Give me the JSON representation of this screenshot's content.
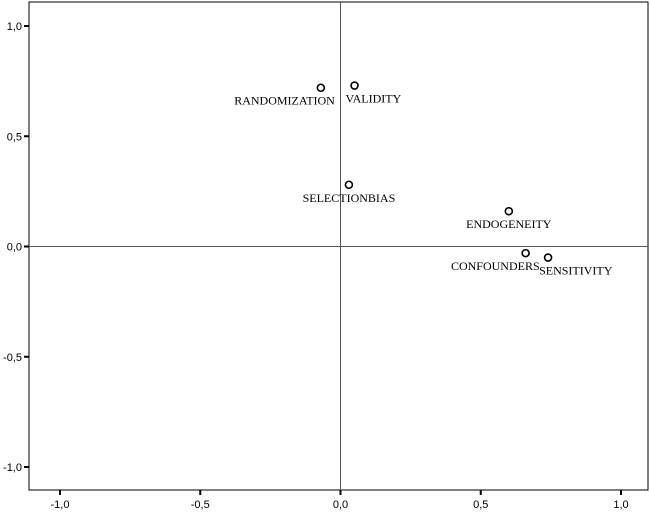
{
  "chart_data": {
    "type": "scatter",
    "title": "",
    "xlabel": "",
    "ylabel": "",
    "xlim": [
      -1.1,
      1.1
    ],
    "ylim": [
      -1.1,
      1.1
    ],
    "xticks": [
      -1.0,
      -0.5,
      0.0,
      0.5,
      1.0
    ],
    "yticks": [
      -1.0,
      -0.5,
      0.0,
      0.5,
      1.0
    ],
    "xtick_labels": [
      "-1,0",
      "-0,5",
      "0,0",
      "0,5",
      "1,0"
    ],
    "ytick_labels": [
      "-1,0",
      "-0,5",
      "0,0",
      "0,5",
      "1,0"
    ],
    "reference_lines": {
      "x": 0,
      "y": 0
    },
    "grid": false,
    "points": [
      {
        "label": "RANDOMIZATION",
        "x": -0.07,
        "y": 0.72,
        "label_anchor": "end"
      },
      {
        "label": "VALIDITY",
        "x": 0.05,
        "y": 0.73,
        "label_anchor": "start"
      },
      {
        "label": "SELECTIONBIAS",
        "x": 0.03,
        "y": 0.28,
        "label_anchor": "middle"
      },
      {
        "label": "ENDOGENEITY",
        "x": 0.6,
        "y": 0.16,
        "label_anchor": "middle"
      },
      {
        "label": "CONFOUNDERS",
        "x": 0.66,
        "y": -0.03,
        "label_anchor": "end"
      },
      {
        "label": "SENSITIVITY",
        "x": 0.74,
        "y": -0.05,
        "label_anchor": "start"
      }
    ],
    "colors": {
      "marker_stroke": "#000000",
      "marker_fill": "#ffffff",
      "axis": "#000000",
      "reference_line": "#555555"
    }
  }
}
